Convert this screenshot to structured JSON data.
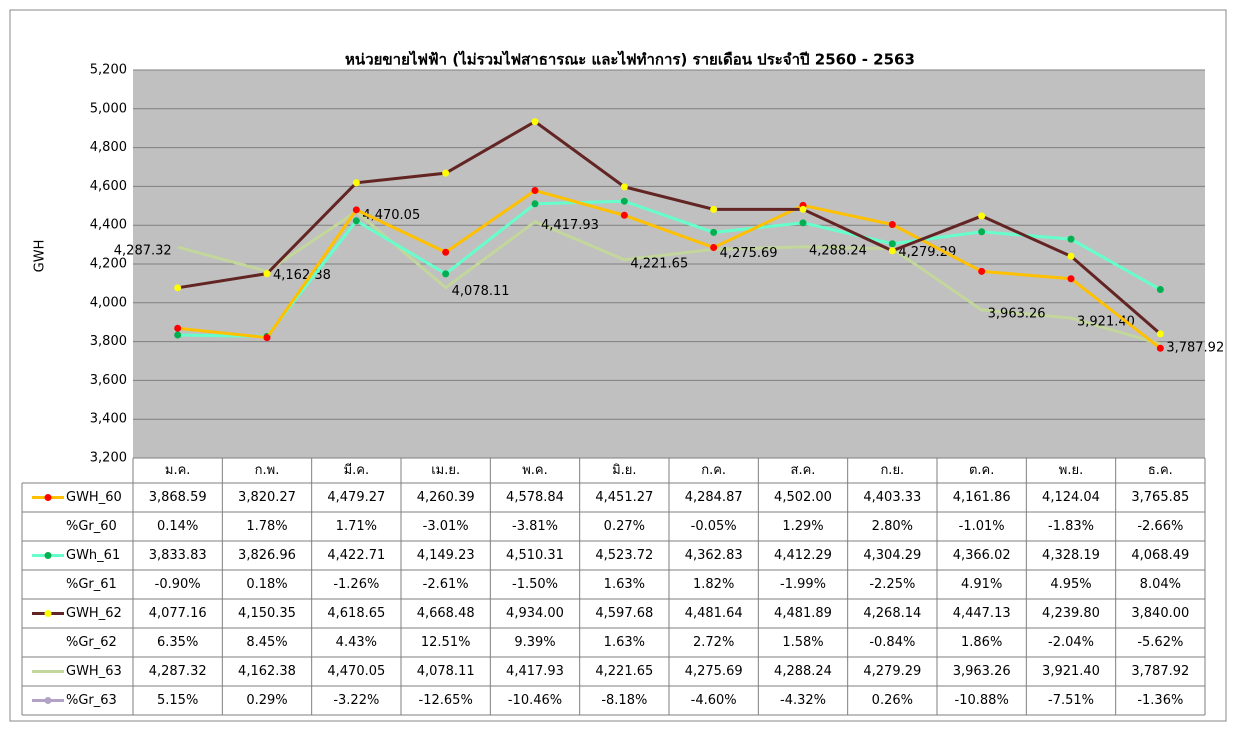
{
  "chart_data": {
    "type": "line",
    "title": "หน่วยขายไฟฟ้า (ไม่รวมไฟสาธารณะ และไฟทำการ) รายเดือน ประจำปี 2560 - 2563",
    "y_label": "GWH",
    "categories": [
      "ม.ค.",
      "ก.พ.",
      "มี.ค.",
      "เม.ย.",
      "พ.ค.",
      "มิ.ย.",
      "ก.ค.",
      "ส.ค.",
      "ก.ย.",
      "ต.ค.",
      "พ.ย.",
      "ธ.ค."
    ],
    "ylim": [
      3200,
      5200
    ],
    "yticks": [
      {
        "value": 3200,
        "label": "3,200"
      },
      {
        "value": 3400,
        "label": "3,400"
      },
      {
        "value": 3600,
        "label": "3,600"
      },
      {
        "value": 3800,
        "label": "3,800"
      },
      {
        "value": 4000,
        "label": "4,000"
      },
      {
        "value": 4200,
        "label": "4,200"
      },
      {
        "value": 4400,
        "label": "4,400"
      },
      {
        "value": 4600,
        "label": "4,600"
      },
      {
        "value": 4800,
        "label": "4,800"
      },
      {
        "value": 5000,
        "label": "5,000"
      },
      {
        "value": 5200,
        "label": "5,200"
      }
    ],
    "grid": true,
    "series": [
      {
        "name": "GWH_60",
        "color": "#ffc000",
        "marker_color": "#ff0000",
        "values": [
          3868.59,
          3820.27,
          4479.27,
          4260.39,
          4578.84,
          4451.27,
          4284.87,
          4502.0,
          4403.33,
          4161.86,
          4124.04,
          3765.85
        ],
        "value_labels": [
          "3,868.59",
          "3,820.27",
          "4,479.27",
          "4,260.39",
          "4,578.84",
          "4,451.27",
          "4,284.87",
          "4,502.00",
          "4,403.33",
          "4,161.86",
          "4,124.04",
          "3,765.85"
        ],
        "growth": {
          "name": "%Gr_60",
          "labels": [
            "0.14%",
            "1.78%",
            "1.71%",
            "-3.01%",
            "-3.81%",
            "0.27%",
            "-0.05%",
            "1.29%",
            "2.80%",
            "-1.01%",
            "-1.83%",
            "-2.66%"
          ]
        }
      },
      {
        "name": "GWh_61",
        "color": "#66ffcc",
        "marker_color": "#00b050",
        "values": [
          3833.83,
          3826.96,
          4422.71,
          4149.23,
          4510.31,
          4523.72,
          4362.83,
          4412.29,
          4304.29,
          4366.02,
          4328.19,
          4068.49
        ],
        "value_labels": [
          "3,833.83",
          "3,826.96",
          "4,422.71",
          "4,149.23",
          "4,510.31",
          "4,523.72",
          "4,362.83",
          "4,412.29",
          "4,304.29",
          "4,366.02",
          "4,328.19",
          "4,068.49"
        ],
        "growth": {
          "name": "%Gr_61",
          "labels": [
            "-0.90%",
            "0.18%",
            "-1.26%",
            "-2.61%",
            "-1.50%",
            "1.63%",
            "1.82%",
            "-1.99%",
            "-2.25%",
            "4.91%",
            "4.95%",
            "8.04%"
          ]
        }
      },
      {
        "name": "GWH_62",
        "color": "#632523",
        "marker_color": "#ffff00",
        "values": [
          4077.16,
          4150.35,
          4618.65,
          4668.48,
          4934.0,
          4597.68,
          4481.64,
          4481.89,
          4268.14,
          4447.13,
          4239.8,
          3840.0
        ],
        "value_labels": [
          "4,077.16",
          "4,150.35",
          "4,618.65",
          "4,668.48",
          "4,934.00",
          "4,597.68",
          "4,481.64",
          "4,481.89",
          "4,268.14",
          "4,447.13",
          "4,239.80",
          "3,840.00"
        ],
        "growth": {
          "name": "%Gr_62",
          "labels": [
            "6.35%",
            "8.45%",
            "4.43%",
            "12.51%",
            "9.39%",
            "1.63%",
            "2.72%",
            "1.58%",
            "-0.84%",
            "1.86%",
            "-2.04%",
            "-5.62%"
          ]
        }
      },
      {
        "name": "GWH_63",
        "color": "#c3d69b",
        "data_labels": true,
        "values": [
          4287.32,
          4162.38,
          4470.05,
          4078.11,
          4417.93,
          4221.65,
          4275.69,
          4288.24,
          4279.29,
          3963.26,
          3921.4,
          3787.92
        ],
        "value_labels": [
          "4,287.32",
          "4,162.38",
          "4,470.05",
          "4,078.11",
          "4,417.93",
          "4,221.65",
          "4,275.69",
          "4,288.24",
          "4,279.29",
          "3,963.26",
          "3,921.40",
          "3,787.92"
        ],
        "growth": {
          "name": "%Gr_63",
          "color": "#b3a2c7",
          "labels": [
            "5.15%",
            "0.29%",
            "-3.22%",
            "-12.65%",
            "-10.46%",
            "-8.18%",
            "-4.60%",
            "-4.32%",
            "0.26%",
            "-10.88%",
            "-7.51%",
            "-1.36%"
          ]
        }
      }
    ]
  }
}
